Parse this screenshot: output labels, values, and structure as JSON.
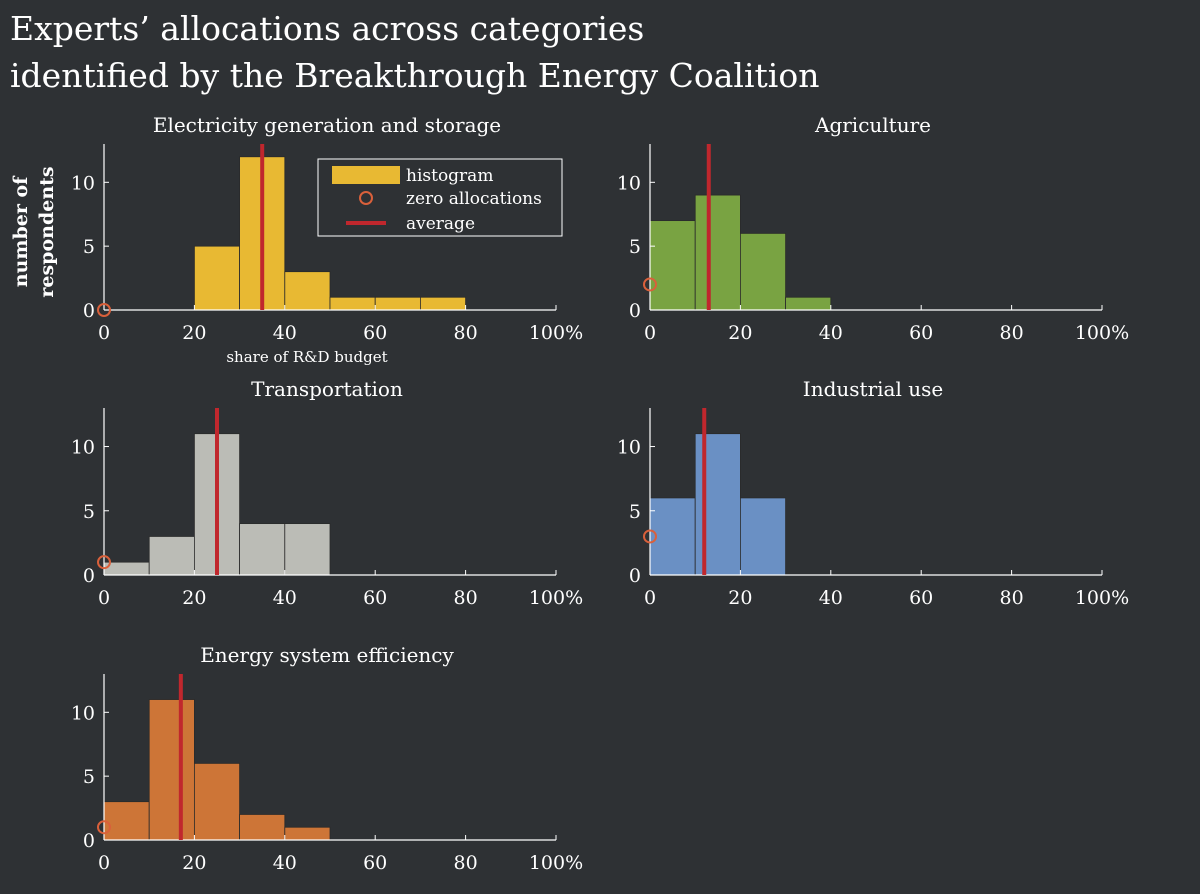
{
  "title_lines": [
    "Experts’ allocations across categories",
    "identified by the Breakthrough Energy Coalition"
  ],
  "ylabel": "number of respondents",
  "ylabel_lines": [
    "number of",
    "respondents"
  ],
  "xlabel": "share of R&D budget",
  "legend": {
    "histogram": "histogram",
    "zero": "zero allocations",
    "average": "average"
  },
  "colors": {
    "background": "#2e3134",
    "average_line": "#c0272d",
    "zero_marker": "#d9603b"
  },
  "chart_data": [
    {
      "type": "bar",
      "title": "Electricity generation and storage",
      "color": "#e8b933",
      "bin_edges": [
        0,
        10,
        20,
        30,
        40,
        50,
        60,
        70,
        80,
        90,
        100
      ],
      "values": [
        0,
        0,
        5,
        12,
        3,
        1,
        1,
        1,
        0,
        0
      ],
      "zero_allocations": 0,
      "average": 35,
      "xlim": [
        0,
        100
      ],
      "ylim": [
        0,
        13
      ],
      "xticks": [
        "0",
        "20",
        "40",
        "60",
        "80",
        "100%"
      ],
      "yticks": [
        "0",
        "5",
        "10"
      ]
    },
    {
      "type": "bar",
      "title": "Agriculture",
      "color": "#79a342",
      "bin_edges": [
        0,
        10,
        20,
        30,
        40,
        50,
        60,
        70,
        80,
        90,
        100
      ],
      "values": [
        7,
        9,
        6,
        1,
        0,
        0,
        0,
        0,
        0,
        0
      ],
      "zero_allocations": 2,
      "average": 13,
      "xlim": [
        0,
        100
      ],
      "ylim": [
        0,
        13
      ],
      "xticks": [
        "0",
        "20",
        "40",
        "60",
        "80",
        "100%"
      ],
      "yticks": [
        "0",
        "5",
        "10"
      ]
    },
    {
      "type": "bar",
      "title": "Transportation",
      "color": "#bbbcb6",
      "bin_edges": [
        0,
        10,
        20,
        30,
        40,
        50,
        60,
        70,
        80,
        90,
        100
      ],
      "values": [
        1,
        3,
        11,
        4,
        4,
        0,
        0,
        0,
        0,
        0
      ],
      "zero_allocations": 1,
      "average": 25,
      "xlim": [
        0,
        100
      ],
      "ylim": [
        0,
        13
      ],
      "xticks": [
        "0",
        "20",
        "40",
        "60",
        "80",
        "100%"
      ],
      "yticks": [
        "0",
        "5",
        "10"
      ]
    },
    {
      "type": "bar",
      "title": "Industrial use",
      "color": "#6a90c4",
      "bin_edges": [
        0,
        10,
        20,
        30,
        40,
        50,
        60,
        70,
        80,
        90,
        100
      ],
      "values": [
        6,
        11,
        6,
        0,
        0,
        0,
        0,
        0,
        0,
        0
      ],
      "zero_allocations": 3,
      "average": 12,
      "xlim": [
        0,
        100
      ],
      "ylim": [
        0,
        13
      ],
      "xticks": [
        "0",
        "20",
        "40",
        "60",
        "80",
        "100%"
      ],
      "yticks": [
        "0",
        "5",
        "10"
      ]
    },
    {
      "type": "bar",
      "title": "Energy system efficiency",
      "color": "#cd7537",
      "bin_edges": [
        0,
        10,
        20,
        30,
        40,
        50,
        60,
        70,
        80,
        90,
        100
      ],
      "values": [
        3,
        11,
        6,
        2,
        1,
        0,
        0,
        0,
        0,
        0
      ],
      "zero_allocations": 1,
      "average": 17,
      "xlim": [
        0,
        100
      ],
      "ylim": [
        0,
        13
      ],
      "xticks": [
        "0",
        "20",
        "40",
        "60",
        "80",
        "100%"
      ],
      "yticks": [
        "0",
        "5",
        "10"
      ]
    }
  ]
}
